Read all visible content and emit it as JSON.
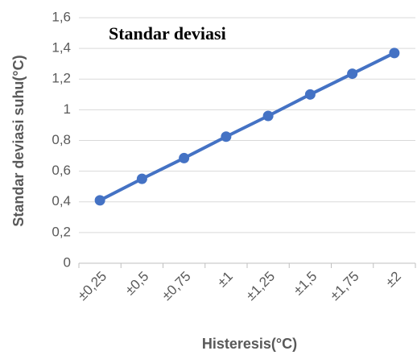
{
  "chart_data": {
    "type": "line",
    "title": "Standar deviasi",
    "x_label": "Histeresis(°C)",
    "y_label": "Standar deviasi suhu(°C)",
    "categories": [
      "±0,25",
      "±0,5",
      "±0,75",
      "±1",
      "±1,25",
      "±1,5",
      "±1,75",
      "±2"
    ],
    "series": [
      {
        "name": "Standar deviasi",
        "color": "#4472c4",
        "values": [
          0.41,
          0.55,
          0.685,
          0.825,
          0.96,
          1.1,
          1.235,
          1.37
        ]
      }
    ],
    "ylim": [
      0,
      1.6
    ],
    "yticks": [
      0,
      {
        "value": 0.2,
        "label": "0,2"
      },
      {
        "value": 0.4,
        "label": "0,4"
      },
      {
        "value": 0.6,
        "label": "0,6"
      },
      {
        "value": 0.8,
        "label": "0,8"
      },
      1,
      {
        "value": 1.2,
        "label": "1,2"
      },
      {
        "value": 1.4,
        "label": "1,4"
      },
      {
        "value": 1.6,
        "label": "1,6"
      }
    ],
    "grid": true
  }
}
